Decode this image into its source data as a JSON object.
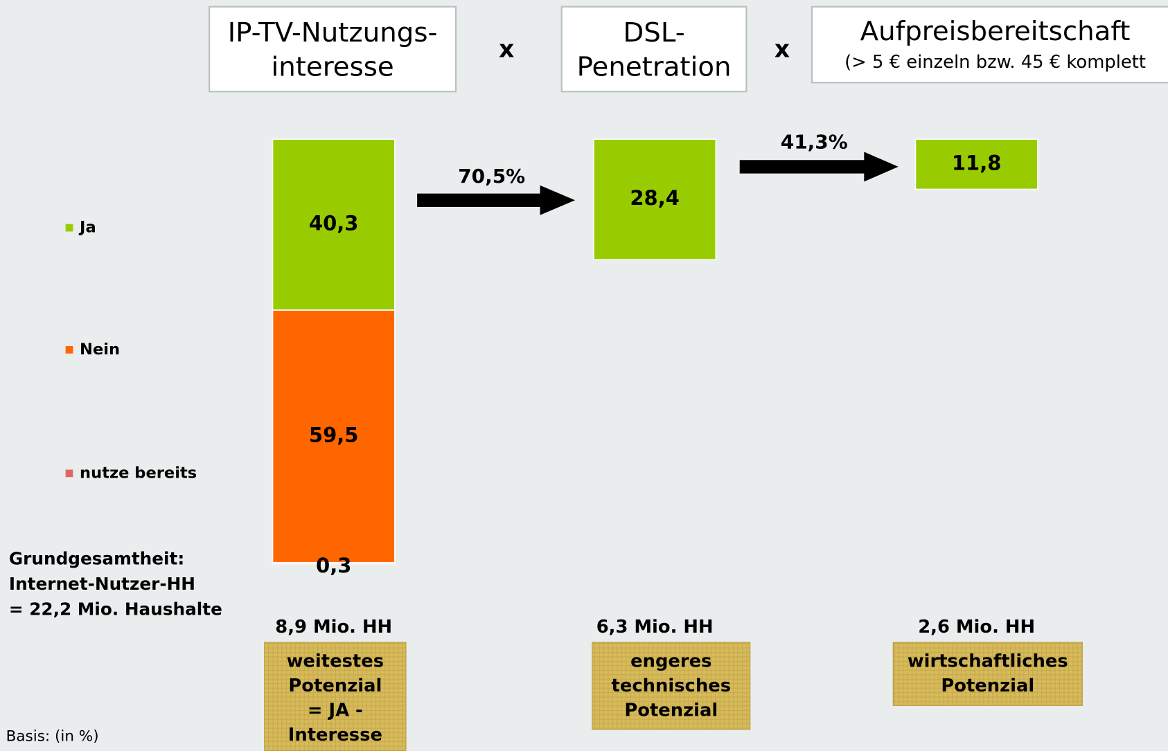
{
  "chart_data": {
    "type": "bar",
    "stacked": true,
    "headers": [
      [
        "IP-TV-Nutzungs-",
        "interesse"
      ],
      [
        "DSL-",
        "Penetration"
      ],
      [
        "Aufpreisbereitschaft",
        "(> 5 € einzeln bzw. 45 € komplett"
      ]
    ],
    "operators": [
      "x",
      "x"
    ],
    "categories": [
      "8,9 Mio. HH",
      "6,3 Mio. HH",
      "2,6 Mio. HH"
    ],
    "series": [
      {
        "name": "Ja",
        "color": "#99cc00",
        "values": [
          40.3,
          28.4,
          11.8
        ],
        "value_labels": [
          "40,3",
          "28,4",
          "11,8"
        ]
      },
      {
        "name": "Nein",
        "color": "#ff6600",
        "values": [
          59.5,
          null,
          null
        ],
        "value_labels": [
          "59,5",
          null,
          null
        ]
      },
      {
        "name": "nutze bereits",
        "color": "#e06666",
        "values": [
          0.3,
          null,
          null
        ],
        "value_labels": [
          "0,3",
          null,
          null
        ]
      }
    ],
    "conversion_rates": [
      70.5,
      41.3
    ],
    "conversion_rate_labels": [
      "70,5%",
      "41,3%"
    ],
    "potentials": [
      [
        "weitestes",
        "Potenzial",
        "= JA -",
        "Interesse"
      ],
      [
        "engeres",
        "technisches",
        "Potenzial"
      ],
      [
        "wirtschaftliches",
        "Potenzial"
      ]
    ],
    "base_note": [
      "Grundgesamtheit:",
      "Internet-Nutzer-HH",
      "= 22,2 Mio. Haushalte"
    ],
    "footnote": "Basis: (in %)",
    "ylim": [
      0,
      100
    ]
  }
}
